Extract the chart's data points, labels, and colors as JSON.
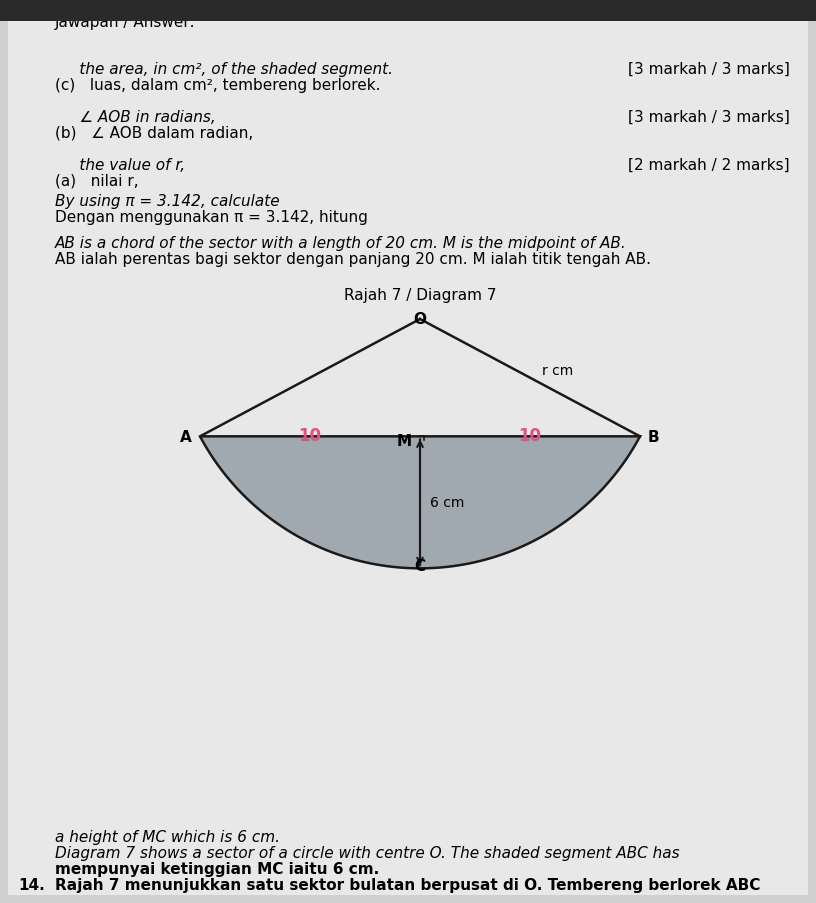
{
  "bg_color": "#d0d0d0",
  "page_bg": "#c8c8c8",
  "white_bg": "#f0f0f0",
  "question_number": "14.",
  "malay_title": "Rajah 7 menunjukkan satu sektor bulatan berpusat di O. Tembereng berlorek ABC",
  "malay_title2": "mempunyai ketinggian MC iaitu 6 cm.",
  "english_title": "Diagram 7 shows a sector of a circle with centre O. The shaded segment ABC has",
  "english_title2": "a height of MC which is 6 cm.",
  "diagram_caption": "Rajah 7 / Diagram 7",
  "label_A": "A",
  "label_B": "B",
  "label_C": "C",
  "label_M": "M",
  "label_O": "O",
  "label_6cm": "6 cm",
  "label_10_left": "10",
  "label_10_right": "10",
  "label_rcm": "r cm",
  "line1_malay": "AB ialah perentas bagi sektor dengan panjang 20 cm. M ialah titik tengah AB.",
  "line1_english": "AB is a chord of the sector with a length of 20 cm. M is the midpoint of AB.",
  "using_line_malay": "Dengan menggunakan π = 3.142, hitung",
  "using_line_english": "By using π = 3.142, calculate",
  "part_a_malay": "(a)   nilai r,",
  "part_a_english": "     the value of r,",
  "part_a_marks": "[2 markah / 2 marks]",
  "part_b_malay": "(b)   ∠ AOB dalam radian,",
  "part_b_english": "     ∠ AOB in radians,",
  "part_b_marks": "[3 markah / 3 marks]",
  "part_c_malay": "(c)   luas, dalam cm², tembereng berlorek.",
  "part_c_english": "     the area, in cm², of the shaded segment.",
  "part_c_marks": "[3 markah / 3 marks]",
  "answer_line": "Jawapan / Answer:",
  "shaded_color": "#a0a8b0",
  "arc_color": "#1a1a1a",
  "line_color": "#1a1a1a",
  "pink_color": "#e05080",
  "arrow_color": "#1a1a1a"
}
